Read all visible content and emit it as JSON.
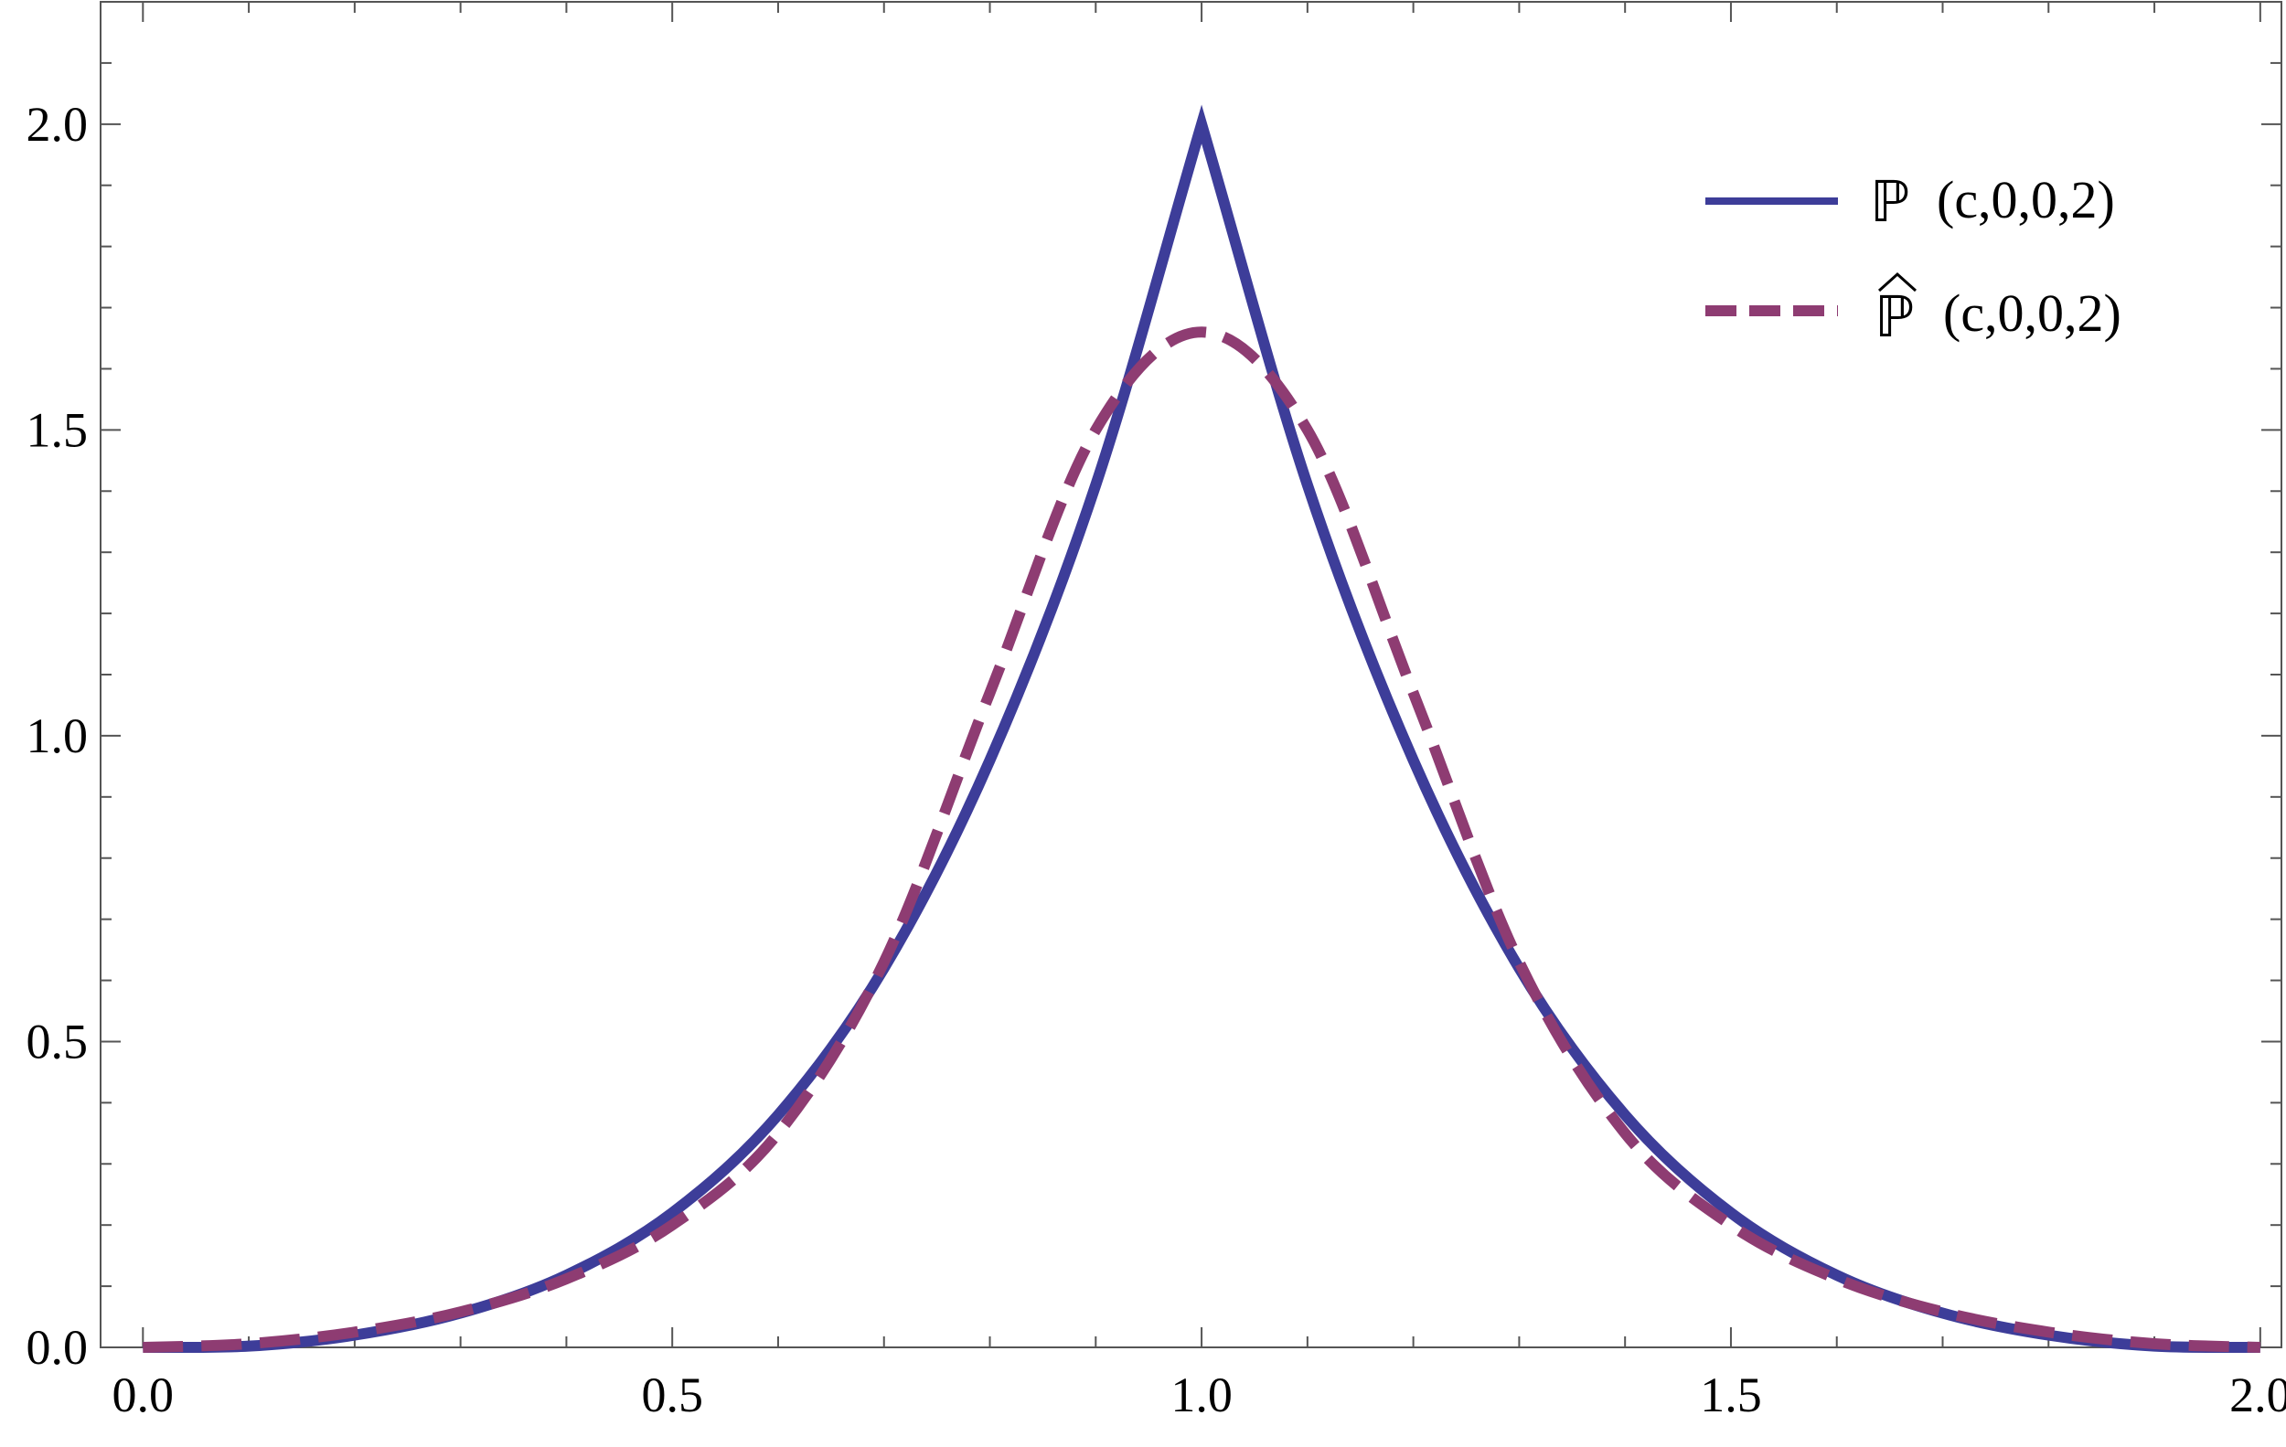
{
  "chart_data": {
    "type": "line",
    "title": "",
    "xlabel": "",
    "ylabel": "",
    "xlim": [
      -0.04,
      2.02
    ],
    "ylim": [
      0,
      2.2
    ],
    "grid": false,
    "legend_position": "top-right",
    "x_ticks": [
      "0.0",
      "0.5",
      "1.0",
      "1.5",
      "2.0"
    ],
    "y_ticks": [
      "0.0",
      "0.5",
      "1.0",
      "1.5",
      "2.0"
    ],
    "series": [
      {
        "name": "ℙ (c,0,0,2)",
        "legend_symbol": "ℙ",
        "legend_args": "(c,0,0,2)",
        "color": "#3d3d99",
        "style": "solid",
        "x": [
          0.0,
          0.1,
          0.2,
          0.3,
          0.4,
          0.5,
          0.6,
          0.7,
          0.8,
          0.9,
          1.0,
          1.1,
          1.2,
          1.3,
          1.4,
          1.5,
          1.6,
          1.7,
          1.8,
          1.9,
          2.0
        ],
        "values": [
          0.0,
          0.002,
          0.02,
          0.056,
          0.118,
          0.22,
          0.38,
          0.62,
          0.96,
          1.41,
          2.0,
          1.41,
          0.96,
          0.62,
          0.38,
          0.22,
          0.118,
          0.056,
          0.02,
          0.002,
          0.0
        ]
      },
      {
        "name": "ℙ̂ (c,0,0,2)",
        "legend_symbol": "ℙ",
        "legend_args": "(c,0,0,2)",
        "color": "#8e3c72",
        "style": "dashed",
        "x": [
          0.0,
          0.1,
          0.2,
          0.3,
          0.4,
          0.5,
          0.6,
          0.7,
          0.8,
          0.9,
          1.0,
          1.1,
          1.2,
          1.3,
          1.4,
          1.5,
          1.6,
          1.7,
          1.8,
          1.9,
          2.0
        ],
        "values": [
          0.0,
          0.006,
          0.025,
          0.058,
          0.112,
          0.2,
          0.35,
          0.63,
          1.07,
          1.5,
          1.66,
          1.5,
          1.07,
          0.63,
          0.35,
          0.2,
          0.112,
          0.058,
          0.025,
          0.006,
          0.0
        ]
      }
    ]
  }
}
